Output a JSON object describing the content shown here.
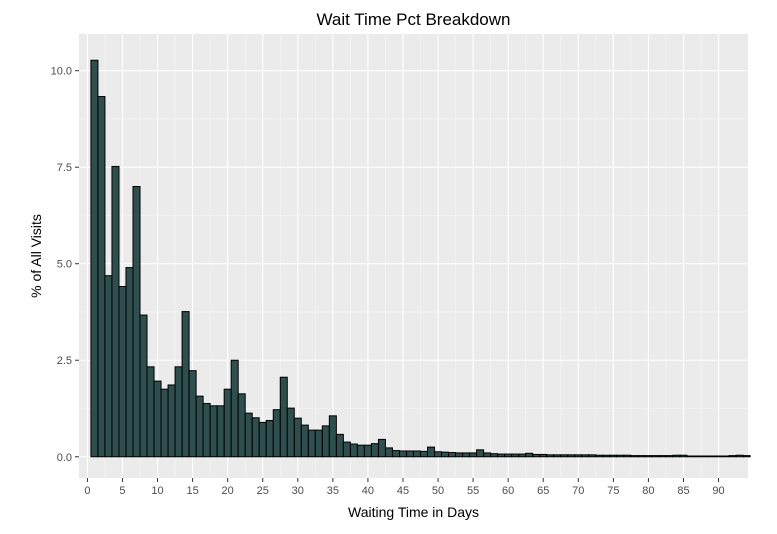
{
  "chart_data": {
    "type": "bar",
    "title": "Wait Time Pct Breakdown",
    "xlabel": "Waiting Time in Days",
    "ylabel": "% of All Visits",
    "xlim": [
      -1.2,
      94.2
    ],
    "ylim": [
      -0.55,
      10.95
    ],
    "x_ticks": [
      0,
      5,
      10,
      15,
      20,
      25,
      30,
      35,
      40,
      45,
      50,
      55,
      60,
      65,
      70,
      75,
      80,
      85,
      90
    ],
    "x_tick_labels": [
      "0",
      "5",
      "10",
      "15",
      "20",
      "25",
      "30",
      "35",
      "40",
      "45",
      "50",
      "55",
      "60",
      "65",
      "70",
      "75",
      "80",
      "85",
      "90"
    ],
    "y_ticks": [
      0,
      2.5,
      5,
      7.5,
      10
    ],
    "y_tick_labels": [
      "0.0",
      "2.5",
      "5.0",
      "7.5",
      "10.0"
    ],
    "grid": true,
    "bar_color": "#2F4F4F",
    "bar_edge_color": "#000000",
    "panel_color": "#EBEBEB",
    "x": [
      1,
      2,
      3,
      4,
      5,
      6,
      7,
      8,
      9,
      10,
      11,
      12,
      13,
      14,
      15,
      16,
      17,
      18,
      19,
      20,
      21,
      22,
      23,
      24,
      25,
      26,
      27,
      28,
      29,
      30,
      31,
      32,
      33,
      34,
      35,
      36,
      37,
      38,
      39,
      40,
      41,
      42,
      43,
      44,
      45,
      46,
      47,
      48,
      49,
      50,
      51,
      52,
      53,
      54,
      55,
      56,
      57,
      58,
      59,
      60,
      61,
      62,
      63,
      64,
      65,
      66,
      67,
      68,
      69,
      70,
      71,
      72,
      73,
      74,
      75,
      76,
      77,
      78,
      79,
      80,
      81,
      82,
      83,
      84,
      85,
      86,
      87,
      88,
      89,
      90,
      91,
      92,
      93,
      94
    ],
    "values": [
      10.27,
      9.33,
      4.69,
      7.52,
      4.41,
      4.9,
      7,
      3.67,
      2.33,
      1.96,
      1.75,
      1.86,
      2.33,
      3.76,
      2.23,
      1.57,
      1.38,
      1.32,
      1.32,
      1.75,
      2.5,
      1.63,
      1.13,
      1.01,
      0.89,
      0.94,
      1.22,
      2.06,
      1.26,
      1,
      0.82,
      0.69,
      0.69,
      0.8,
      1.06,
      0.58,
      0.38,
      0.33,
      0.3,
      0.3,
      0.34,
      0.45,
      0.23,
      0.16,
      0.15,
      0.15,
      0.15,
      0.14,
      0.25,
      0.13,
      0.12,
      0.11,
      0.1,
      0.1,
      0.1,
      0.18,
      0.1,
      0.08,
      0.07,
      0.07,
      0.07,
      0.07,
      0.09,
      0.06,
      0.06,
      0.05,
      0.05,
      0.05,
      0.05,
      0.05,
      0.05,
      0.05,
      0.04,
      0.04,
      0.04,
      0.04,
      0.04,
      0.03,
      0.03,
      0.03,
      0.03,
      0.03,
      0.03,
      0.04,
      0.04,
      0.02,
      0.02,
      0.02,
      0.02,
      0.02,
      0.02,
      0.03,
      0.04,
      0.03
    ]
  }
}
